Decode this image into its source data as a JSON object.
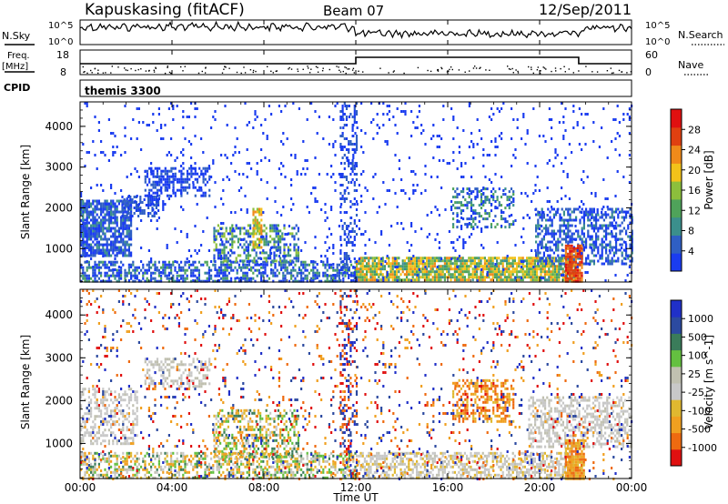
{
  "header": {
    "station": "Kapuskasing (fitACF)",
    "beam": "Beam 07",
    "date": "12/Sep/2011"
  },
  "strips": {
    "nsky": {
      "label": "N.Sky",
      "ticks": [
        "10^5",
        "10^0"
      ]
    },
    "nsearch": {
      "label": "N.Search",
      "ticks": [
        "10^5",
        "10^0"
      ]
    },
    "freq": {
      "label_line1": "Freq.",
      "label_line2": "[MHz]",
      "ticks": [
        "18",
        "8"
      ]
    },
    "nave": {
      "label": "Nave",
      "ticks": [
        "60",
        "0"
      ]
    },
    "cpid": {
      "label": "CPID",
      "value": "themis 3300"
    }
  },
  "colors": {
    "power": [
      "#1a3cf0",
      "#2f5fc4",
      "#3b8f8c",
      "#4fa35a",
      "#8cbf3c",
      "#f2c21a",
      "#f08a1a",
      "#e04010",
      "#e01010"
    ],
    "velocity": [
      "#e01010",
      "#ee6a10",
      "#f0a020",
      "#e0b830",
      "#c8c8c8",
      "#c0c0b0",
      "#64c040",
      "#3a7c5a",
      "#2c4aa0",
      "#2030c8"
    ]
  },
  "chart_data": [
    {
      "type": "heatmap",
      "title": "Kapuskasing (fitACF) Beam 07 12/Sep/2011",
      "xlabel": "Time UT",
      "ylabel": "Slant Range [km]",
      "xlim": [
        "00:00",
        "24:00"
      ],
      "ylim": [
        180,
        4600
      ],
      "x_ticks": [
        "00:00",
        "04:00",
        "08:00",
        "12:00",
        "16:00",
        "20:00",
        "00:00"
      ],
      "y_ticks": [
        1000,
        2000,
        3000,
        4000
      ],
      "colorbar": {
        "label": "Power [dB]",
        "range": [
          0,
          32
        ],
        "ticks": [
          4,
          8,
          12,
          16,
          20,
          24,
          28
        ]
      }
    },
    {
      "type": "heatmap",
      "xlabel": "Time UT",
      "ylabel": "Slant Range [km]",
      "xlim": [
        "00:00",
        "24:00"
      ],
      "ylim": [
        180,
        4600
      ],
      "x_ticks": [
        "00:00",
        "04:00",
        "08:00",
        "12:00",
        "16:00",
        "20:00",
        "00:00"
      ],
      "y_ticks": [
        1000,
        2000,
        3000,
        4000
      ],
      "colorbar": {
        "label": "Velocity [m s^-1]",
        "ticks": [
          1000,
          500,
          100,
          25,
          -25,
          -100,
          -500,
          -1000
        ]
      }
    }
  ]
}
